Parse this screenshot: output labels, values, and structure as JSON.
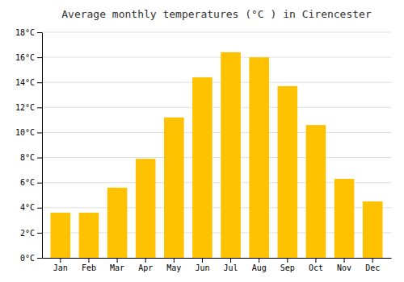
{
  "chart_data": {
    "type": "bar",
    "title": "Average monthly temperatures (°C ) in Cirencester",
    "categories": [
      "Jan",
      "Feb",
      "Mar",
      "Apr",
      "May",
      "Jun",
      "Jul",
      "Aug",
      "Sep",
      "Oct",
      "Nov",
      "Dec"
    ],
    "values": [
      3.6,
      3.6,
      5.6,
      7.9,
      11.2,
      14.4,
      16.4,
      16.0,
      13.7,
      10.6,
      6.3,
      4.5
    ],
    "color": "#FFC200",
    "ylim": [
      0,
      18
    ],
    "yticks": [
      {
        "value": 0,
        "label": "0°C"
      },
      {
        "value": 2,
        "label": "2°C"
      },
      {
        "value": 4,
        "label": "4°C"
      },
      {
        "value": 6,
        "label": "6°C"
      },
      {
        "value": 8,
        "label": "8°C"
      },
      {
        "value": 10,
        "label": "10°C"
      },
      {
        "value": 12,
        "label": "12°C"
      },
      {
        "value": 14,
        "label": "14°C"
      },
      {
        "value": 16,
        "label": "16°C"
      },
      {
        "value": 18,
        "label": "18°C"
      }
    ],
    "grid": true
  }
}
